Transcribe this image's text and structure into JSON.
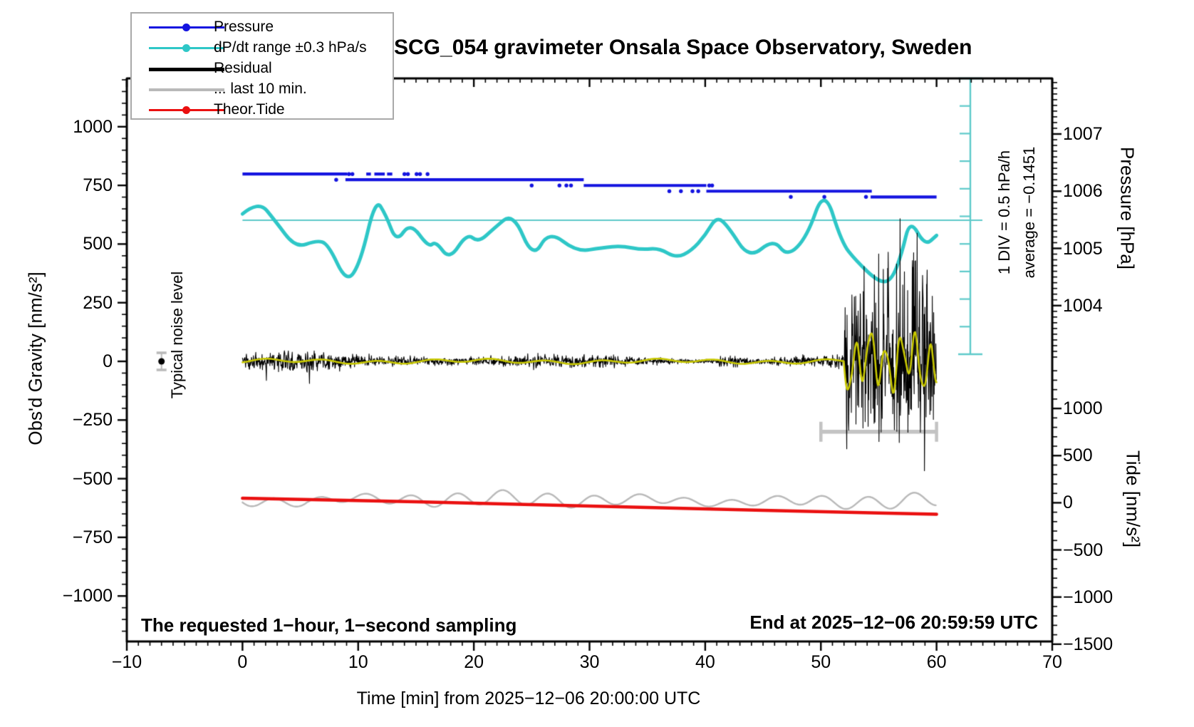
{
  "title": "SCG_054 gravimeter Onsala Space Observatory, Sweden",
  "legend": {
    "items": [
      {
        "label": "Pressure",
        "color": "#1414e0",
        "dot": true,
        "lw": 3
      },
      {
        "label": "dP/dt range ±0.3 hPa/s",
        "color": "#2ec7c7",
        "dot": true,
        "lw": 3
      },
      {
        "label": "Residual",
        "color": "#000000",
        "dot": false,
        "lw": 5
      },
      {
        "label": "... last 10 min.",
        "color": "#b9b9b9",
        "dot": false,
        "lw": 4
      },
      {
        "label": "Theor.Tide",
        "color": "#ea1010",
        "dot": true,
        "lw": 3
      }
    ]
  },
  "annotations": {
    "sampling": "The requested 1−hour, 1−second sampling",
    "end_time": "End at 2025−12−06 20:59:59 UTC",
    "noise_level": "Typical noise level",
    "div_scale": "1 DIV = 0.5 hPa/h",
    "average": "average = −0.1451"
  },
  "axes": {
    "x": {
      "label": "Time [min] from 2025−12−06 20:00:00 UTC",
      "range": [
        -10,
        70
      ],
      "minor_step": 1,
      "ticks": [
        [
          -10,
          "−10"
        ],
        [
          0,
          "0"
        ],
        [
          10,
          "10"
        ],
        [
          20,
          "20"
        ],
        [
          30,
          "30"
        ],
        [
          40,
          "40"
        ],
        [
          50,
          "50"
        ],
        [
          60,
          "60"
        ],
        [
          70,
          "70"
        ]
      ]
    },
    "gravity": {
      "label": "Obs'd Gravity [nm/s²]",
      "range": [
        -1200,
        1200
      ],
      "minor_step": 50,
      "ticks": [
        [
          1000,
          "1000"
        ],
        [
          750,
          "750"
        ],
        [
          500,
          "500"
        ],
        [
          250,
          "250"
        ],
        [
          0,
          "0"
        ],
        [
          -250,
          "−250"
        ],
        [
          -500,
          "−500"
        ],
        [
          -750,
          "−750"
        ],
        [
          -1000,
          "−1000"
        ]
      ]
    },
    "pressure": {
      "label": "Pressure [hPa]",
      "minor_step": 0.1,
      "ticks": [
        [
          1007,
          "1007"
        ],
        [
          1006,
          "1006"
        ],
        [
          1005,
          "1005"
        ],
        [
          1004,
          "1004"
        ]
      ]
    },
    "tide": {
      "label": "Tide [nm/s²]",
      "minor_step": 100,
      "ticks": [
        [
          1000,
          "1000"
        ],
        [
          500,
          "500"
        ],
        [
          0,
          "0"
        ],
        [
          -500,
          "−500"
        ],
        [
          -1000,
          "−1000"
        ],
        [
          -1500,
          "−1500"
        ]
      ]
    }
  },
  "chart_data": {
    "type": "line",
    "title": "SCG_054 gravimeter Onsala Space Observatory, Sweden",
    "xlabel": "Time [min] from 2025−12−06 20:00:00 UTC",
    "x_range": [
      -10,
      70
    ],
    "grid": false,
    "legend_position": "top-left",
    "series": [
      {
        "name": "Pressure",
        "unit": "hPa",
        "color": "#1414e0",
        "style": "quantized-steps",
        "segments": [
          [
            1006.3,
            0,
            9.05
          ],
          [
            1006.3,
            10.7,
            11.1
          ],
          [
            1006.3,
            11.4,
            12.3
          ],
          [
            1006.3,
            12.5,
            12.95
          ],
          [
            1006.2,
            8.9,
            29.5
          ],
          [
            1006.1,
            29.5,
            40.1
          ],
          [
            1006.0,
            40.1,
            54.4
          ],
          [
            1005.9,
            54.3,
            60.0
          ]
        ],
        "dots": [
          [
            1006.3,
            9.2
          ],
          [
            1006.3,
            9.5
          ],
          [
            1006.3,
            14.0
          ],
          [
            1006.3,
            14.3
          ],
          [
            1006.3,
            15.05
          ],
          [
            1006.3,
            15.35
          ],
          [
            1006.3,
            16.0
          ],
          [
            1006.2,
            8.1
          ],
          [
            1006.1,
            25.0
          ],
          [
            1006.1,
            27.4
          ],
          [
            1006.1,
            28.0
          ],
          [
            1006.1,
            28.4
          ],
          [
            1006.1,
            40.35
          ],
          [
            1006.1,
            40.6
          ],
          [
            1006.0,
            36.9
          ],
          [
            1006.0,
            37.9
          ],
          [
            1006.0,
            38.9
          ],
          [
            1006.0,
            39.4
          ],
          [
            1005.9,
            47.4
          ],
          [
            1005.9,
            50.3
          ],
          [
            1005.9,
            53.9
          ]
        ]
      },
      {
        "name": "dP/dt",
        "unit": "hPa/h",
        "color": "#2ec7c7",
        "average": -0.1451,
        "div_hpa_per_h": 0.5,
        "points": [
          [
            0,
            -0.03
          ],
          [
            1.4,
            0.21
          ],
          [
            2.8,
            -0.15
          ],
          [
            4.6,
            -0.65
          ],
          [
            6.4,
            -0.51
          ],
          [
            7.4,
            -0.57
          ],
          [
            9.0,
            -1.29
          ],
          [
            10.2,
            -0.91
          ],
          [
            11.5,
            0.25
          ],
          [
            12.4,
            -0.05
          ],
          [
            13.3,
            -0.55
          ],
          [
            14.5,
            -0.18
          ],
          [
            16.1,
            -0.64
          ],
          [
            16.7,
            -0.52
          ],
          [
            17.9,
            -0.87
          ],
          [
            19.4,
            -0.38
          ],
          [
            20.4,
            -0.55
          ],
          [
            21.7,
            -0.3
          ],
          [
            23.4,
            0.0
          ],
          [
            25.1,
            -0.85
          ],
          [
            26.5,
            -0.33
          ],
          [
            28.9,
            -0.72
          ],
          [
            31.1,
            -0.64
          ],
          [
            32.8,
            -0.61
          ],
          [
            34.5,
            -0.68
          ],
          [
            36.0,
            -0.65
          ],
          [
            37.5,
            -0.83
          ],
          [
            38.8,
            -0.7
          ],
          [
            40.0,
            -0.42
          ],
          [
            41.0,
            -0.07
          ],
          [
            42.0,
            -0.26
          ],
          [
            43.8,
            -0.85
          ],
          [
            45.9,
            -0.48
          ],
          [
            47.1,
            -0.81
          ],
          [
            48.8,
            -0.45
          ],
          [
            50.3,
            0.45
          ],
          [
            51.8,
            -0.55
          ],
          [
            53.0,
            -0.87
          ],
          [
            55.0,
            -1.27
          ],
          [
            56.1,
            -1.24
          ],
          [
            57.0,
            -0.75
          ],
          [
            57.7,
            -0.12
          ],
          [
            59.0,
            -0.61
          ],
          [
            60.0,
            -0.42
          ]
        ]
      },
      {
        "name": "Residual",
        "unit": "nm/s²",
        "color": "#000000",
        "synth": {
          "seed": 7,
          "quiet_halfband_nms2": 30,
          "quiet_extreme_nms2": 60,
          "burst_start_min": 52.05,
          "burst_end_min": 60,
          "burst_up_max_nms2": 600,
          "burst_down_max_nms2": 430
        }
      },
      {
        "name": "Residual lowpass",
        "color": "#c8c800",
        "synth": {
          "quiet_halfband_nms2": 8,
          "burst_osc_nms2": 150,
          "burst_start_min": 52.05
        }
      },
      {
        "name": "... last 10 min.",
        "color": "#b9b9b9",
        "synth": {
          "mean_gravity_nms2": -593,
          "amp_nms2": 25,
          "period_min": 1.0
        }
      },
      {
        "name": "Theor.Tide",
        "unit": "nm/s² (tide axis)",
        "color": "#ea1010",
        "points": [
          [
            0,
            48
          ],
          [
            10,
            26
          ],
          [
            20,
            -5
          ],
          [
            30,
            -35
          ],
          [
            40,
            -65
          ],
          [
            50,
            -96
          ],
          [
            60,
            -122
          ]
        ]
      }
    ],
    "markers": {
      "noise_level_point": {
        "t_min": -7,
        "gravity_nms2": 0
      },
      "last10_bar": {
        "t0_min": 50,
        "t1_min": 60,
        "gravity_nms2": -300
      }
    }
  }
}
